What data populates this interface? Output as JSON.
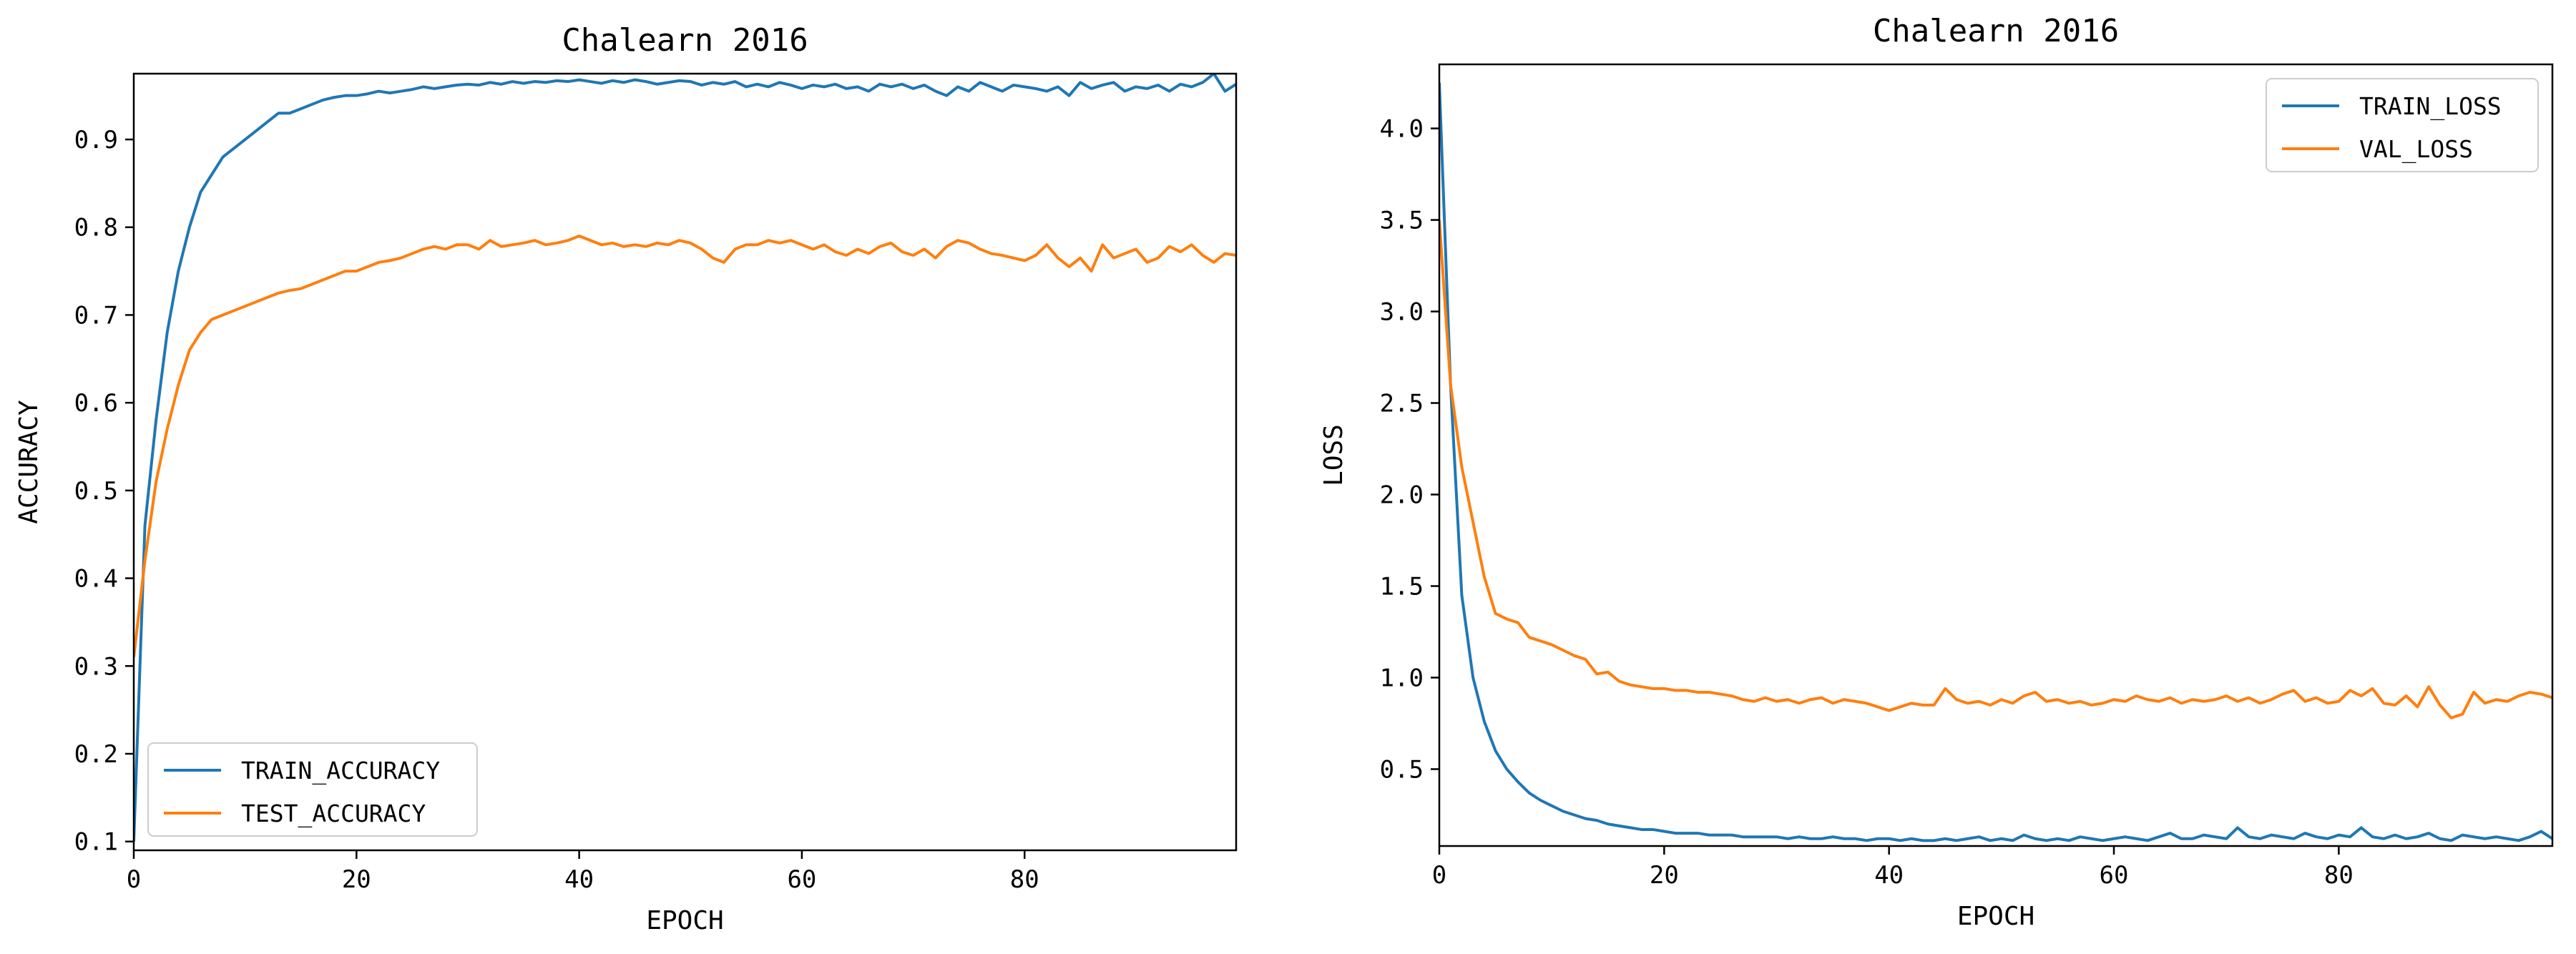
{
  "colors": {
    "series1": "#1f77b4",
    "series2": "#ff7f0e",
    "axes": "#000000",
    "background": "#ffffff",
    "legend_border": "#cccccc"
  },
  "chart_data": [
    {
      "type": "line",
      "title": "Chalearn 2016",
      "xlabel": "EPOCH",
      "ylabel": "ACCURACY",
      "xlim": [
        0,
        99
      ],
      "ylim": [
        0.09,
        0.975
      ],
      "xticks": [
        0,
        20,
        40,
        60,
        80
      ],
      "yticks": [
        0.1,
        0.2,
        0.3,
        0.4,
        0.5,
        0.6,
        0.7,
        0.8,
        0.9
      ],
      "grid": false,
      "legend_position": "lower-left",
      "series": [
        {
          "name": "TRAIN_ACCURACY",
          "color": "#1f77b4",
          "values": [
            0.1,
            0.46,
            0.58,
            0.68,
            0.75,
            0.8,
            0.84,
            0.86,
            0.88,
            0.89,
            0.9,
            0.91,
            0.92,
            0.93,
            0.93,
            0.935,
            0.94,
            0.945,
            0.948,
            0.95,
            0.95,
            0.952,
            0.955,
            0.953,
            0.955,
            0.957,
            0.96,
            0.958,
            0.96,
            0.962,
            0.963,
            0.962,
            0.965,
            0.963,
            0.966,
            0.964,
            0.966,
            0.965,
            0.967,
            0.966,
            0.968,
            0.966,
            0.964,
            0.967,
            0.965,
            0.968,
            0.966,
            0.963,
            0.965,
            0.967,
            0.966,
            0.962,
            0.965,
            0.963,
            0.966,
            0.96,
            0.963,
            0.96,
            0.965,
            0.962,
            0.958,
            0.962,
            0.96,
            0.963,
            0.958,
            0.96,
            0.955,
            0.963,
            0.96,
            0.963,
            0.958,
            0.962,
            0.955,
            0.95,
            0.96,
            0.955,
            0.965,
            0.96,
            0.955,
            0.962,
            0.96,
            0.958,
            0.955,
            0.96,
            0.95,
            0.965,
            0.958,
            0.962,
            0.965,
            0.955,
            0.96,
            0.958,
            0.962,
            0.955,
            0.963,
            0.96,
            0.965,
            0.975,
            0.955,
            0.963
          ]
        },
        {
          "name": "TEST_ACCURACY",
          "color": "#ff7f0e",
          "values": [
            0.31,
            0.42,
            0.51,
            0.57,
            0.62,
            0.66,
            0.68,
            0.695,
            0.7,
            0.705,
            0.71,
            0.715,
            0.72,
            0.725,
            0.728,
            0.73,
            0.735,
            0.74,
            0.745,
            0.75,
            0.75,
            0.755,
            0.76,
            0.762,
            0.765,
            0.77,
            0.775,
            0.778,
            0.775,
            0.78,
            0.78,
            0.775,
            0.785,
            0.778,
            0.78,
            0.782,
            0.785,
            0.78,
            0.782,
            0.785,
            0.79,
            0.785,
            0.78,
            0.782,
            0.778,
            0.78,
            0.778,
            0.782,
            0.78,
            0.785,
            0.782,
            0.775,
            0.765,
            0.76,
            0.775,
            0.78,
            0.78,
            0.785,
            0.782,
            0.785,
            0.78,
            0.775,
            0.78,
            0.772,
            0.768,
            0.775,
            0.77,
            0.778,
            0.782,
            0.772,
            0.768,
            0.775,
            0.765,
            0.778,
            0.785,
            0.782,
            0.775,
            0.77,
            0.768,
            0.765,
            0.762,
            0.768,
            0.78,
            0.765,
            0.755,
            0.765,
            0.75,
            0.78,
            0.765,
            0.77,
            0.775,
            0.76,
            0.765,
            0.778,
            0.772,
            0.78,
            0.768,
            0.76,
            0.77,
            0.768
          ]
        }
      ]
    },
    {
      "type": "line",
      "title": "Chalearn 2016",
      "xlabel": "EPOCH",
      "ylabel": "LOSS",
      "xlim": [
        0,
        99
      ],
      "ylim": [
        0.08,
        4.35
      ],
      "xticks": [
        0,
        20,
        40,
        60,
        80
      ],
      "yticks": [
        0.5,
        1.0,
        1.5,
        2.0,
        2.5,
        3.0,
        3.5,
        4.0
      ],
      "grid": false,
      "legend_position": "upper-right",
      "series": [
        {
          "name": "TRAIN_LOSS",
          "color": "#1f77b4",
          "values": [
            4.25,
            2.6,
            1.45,
            1.0,
            0.76,
            0.6,
            0.5,
            0.43,
            0.37,
            0.33,
            0.3,
            0.27,
            0.25,
            0.23,
            0.22,
            0.2,
            0.19,
            0.18,
            0.17,
            0.17,
            0.16,
            0.15,
            0.15,
            0.15,
            0.14,
            0.14,
            0.14,
            0.13,
            0.13,
            0.13,
            0.13,
            0.12,
            0.13,
            0.12,
            0.12,
            0.13,
            0.12,
            0.12,
            0.11,
            0.12,
            0.12,
            0.11,
            0.12,
            0.11,
            0.11,
            0.12,
            0.11,
            0.12,
            0.13,
            0.11,
            0.12,
            0.11,
            0.14,
            0.12,
            0.11,
            0.12,
            0.11,
            0.13,
            0.12,
            0.11,
            0.12,
            0.13,
            0.12,
            0.11,
            0.13,
            0.15,
            0.12,
            0.12,
            0.14,
            0.13,
            0.12,
            0.18,
            0.13,
            0.12,
            0.14,
            0.13,
            0.12,
            0.15,
            0.13,
            0.12,
            0.14,
            0.13,
            0.18,
            0.13,
            0.12,
            0.14,
            0.12,
            0.13,
            0.15,
            0.12,
            0.11,
            0.14,
            0.13,
            0.12,
            0.13,
            0.12,
            0.11,
            0.13,
            0.16,
            0.12
          ]
        },
        {
          "name": "VAL_LOSS",
          "color": "#ff7f0e",
          "values": [
            3.5,
            2.6,
            2.15,
            1.85,
            1.55,
            1.35,
            1.32,
            1.3,
            1.22,
            1.2,
            1.18,
            1.15,
            1.12,
            1.1,
            1.02,
            1.03,
            0.98,
            0.96,
            0.95,
            0.94,
            0.94,
            0.93,
            0.93,
            0.92,
            0.92,
            0.91,
            0.9,
            0.88,
            0.87,
            0.89,
            0.87,
            0.88,
            0.86,
            0.88,
            0.89,
            0.86,
            0.88,
            0.87,
            0.86,
            0.84,
            0.82,
            0.84,
            0.86,
            0.85,
            0.85,
            0.94,
            0.88,
            0.86,
            0.87,
            0.85,
            0.88,
            0.86,
            0.9,
            0.92,
            0.87,
            0.88,
            0.86,
            0.87,
            0.85,
            0.86,
            0.88,
            0.87,
            0.9,
            0.88,
            0.87,
            0.89,
            0.86,
            0.88,
            0.87,
            0.88,
            0.9,
            0.87,
            0.89,
            0.86,
            0.88,
            0.91,
            0.93,
            0.87,
            0.89,
            0.86,
            0.87,
            0.93,
            0.9,
            0.94,
            0.86,
            0.85,
            0.9,
            0.84,
            0.95,
            0.85,
            0.78,
            0.8,
            0.92,
            0.86,
            0.88,
            0.87,
            0.9,
            0.92,
            0.91,
            0.89
          ]
        }
      ]
    }
  ]
}
